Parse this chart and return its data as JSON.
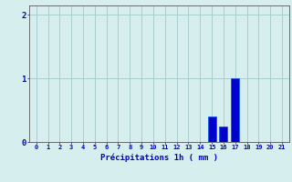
{
  "categories": [
    0,
    1,
    2,
    3,
    4,
    5,
    6,
    7,
    8,
    9,
    10,
    11,
    12,
    13,
    14,
    15,
    16,
    17,
    18,
    19,
    20,
    21
  ],
  "values": [
    0,
    0,
    0,
    0,
    0,
    0,
    0,
    0,
    0,
    0,
    0,
    0,
    0,
    0,
    0,
    0.4,
    0.25,
    1.0,
    0,
    0,
    0,
    0
  ],
  "bar_color": "#0000cc",
  "bar_edge_color": "#0055ee",
  "background_color": "#d6eeee",
  "grid_color": "#aacccc",
  "axis_color": "#555555",
  "xlabel": "Précipitations 1h ( mm )",
  "xlabel_color": "#0000cc",
  "tick_color": "#0000cc",
  "ylim": [
    0,
    2.15
  ],
  "yticks": [
    0,
    1,
    2
  ],
  "xlim": [
    -0.6,
    21.6
  ]
}
